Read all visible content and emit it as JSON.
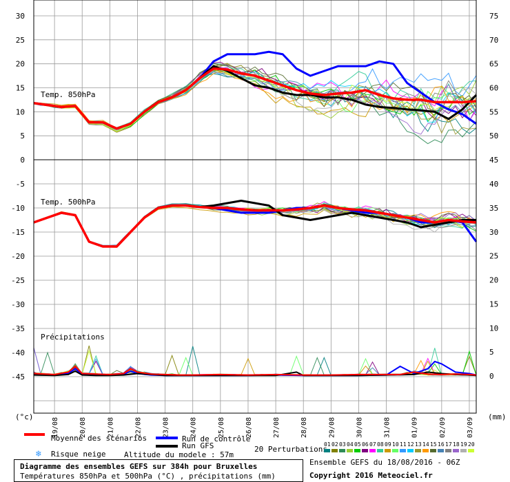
{
  "panels": {
    "t850_title": "Temp. 850hPa",
    "t500_title": "Temp. 500hPa",
    "precip_title": "Précipitations"
  },
  "units": {
    "left": "(°c)",
    "right": "(mm)"
  },
  "legend": {
    "mean": "Moyenne des scénarios",
    "control": "Run de contrôle",
    "gfs": "Run GFS",
    "snow": "Risque neige",
    "altitude": "Altitude du modele : 57m",
    "perturbations": "20 Perturbations",
    "perturbation_ids": [
      "01",
      "02",
      "03",
      "04",
      "05",
      "06",
      "07",
      "08",
      "09",
      "10",
      "11",
      "12",
      "13",
      "14",
      "15",
      "16",
      "17",
      "18",
      "19",
      "20"
    ]
  },
  "footer": {
    "title": "Diagramme des ensembles GEFS sur 384h pour Bruxelles",
    "subtitle": "Températures 850hPa et 500hPa (°C) , précipitations (mm)",
    "run": "Ensemble GEFS du 18/08/2016 - 06Z",
    "copyright": "Copyright 2016 Meteociel.fr"
  },
  "colors": {
    "mean": "#ff0000",
    "control": "#0000ff",
    "gfs": "#000000",
    "snow": "#3399ff",
    "perturbations": [
      "#008080",
      "#808000",
      "#2e8b57",
      "#9acd32",
      "#00cc00",
      "#800080",
      "#ff00ff",
      "#33cc99",
      "#cc9900",
      "#66ff66",
      "#3399ff",
      "#00ccff",
      "#999933",
      "#ff9900",
      "#556b2f",
      "#4682b4",
      "#808080",
      "#9966cc",
      "#b0b0b0",
      "#ccff33"
    ]
  },
  "chart_data": [
    {
      "type": "line",
      "title": "Temp. 850hPa",
      "x_labels": [
        "19/08",
        "20/08",
        "21/08",
        "22/08",
        "23/08",
        "24/08",
        "25/08",
        "26/08",
        "27/08",
        "28/08",
        "29/08",
        "30/08",
        "31/08",
        "01/09",
        "02/09",
        "03/09"
      ],
      "x_range_days": [
        18.25,
        34.25
      ],
      "ylim": [
        0,
        30
      ],
      "yticks": [
        0,
        5,
        10,
        15,
        20,
        25,
        30
      ],
      "series": [
        {
          "name": "Moyenne des scénarios",
          "x": [
            18.25,
            19.25,
            19.75,
            20.25,
            20.75,
            21.25,
            21.75,
            22.25,
            22.75,
            23.25,
            23.75,
            24.25,
            24.75,
            25.25,
            25.75,
            26.25,
            26.75,
            27.25,
            27.75,
            28.25,
            28.75,
            29.25,
            29.75,
            30.25,
            30.75,
            31.25,
            31.75,
            32.25,
            32.75,
            33.25,
            33.75,
            34.25
          ],
          "y": [
            11.8,
            11.0,
            11.2,
            7.8,
            7.8,
            6.5,
            7.5,
            10.0,
            12.0,
            13.0,
            14.5,
            17.0,
            19.0,
            18.8,
            18.0,
            17.5,
            16.5,
            15.5,
            14.5,
            13.8,
            13.5,
            13.8,
            14.0,
            14.5,
            13.5,
            12.8,
            12.5,
            12.5,
            12.0,
            12.0,
            12.0,
            12.2
          ]
        },
        {
          "name": "Run de contrôle",
          "x": [
            18.25,
            19.25,
            19.75,
            20.25,
            20.75,
            21.25,
            21.75,
            22.25,
            22.75,
            23.25,
            23.75,
            24.25,
            24.75,
            25.25,
            25.75,
            26.25,
            26.75,
            27.25,
            27.75,
            28.25,
            28.75,
            29.25,
            29.75,
            30.25,
            30.75,
            31.25,
            31.75,
            32.25,
            32.75,
            33.25,
            33.75,
            34.25
          ],
          "y": [
            11.8,
            11.0,
            11.2,
            7.8,
            7.8,
            6.5,
            7.5,
            10.0,
            12.0,
            13.0,
            14.5,
            17.0,
            20.5,
            22.0,
            22.0,
            22.0,
            22.5,
            22.0,
            19.0,
            17.5,
            18.5,
            19.5,
            19.5,
            19.5,
            20.5,
            20.0,
            16.0,
            14.0,
            12.0,
            10.5,
            9.5,
            7.5
          ]
        },
        {
          "name": "Run GFS",
          "x": [
            18.25,
            19.25,
            19.75,
            20.25,
            20.75,
            21.25,
            21.75,
            22.25,
            22.75,
            23.25,
            23.75,
            24.25,
            24.75,
            25.25,
            25.75,
            26.25,
            26.75,
            27.25,
            27.75,
            28.25,
            28.75,
            29.25,
            29.75,
            30.25,
            30.75,
            31.25,
            31.75,
            32.25,
            32.75,
            33.25,
            33.75,
            34.25
          ],
          "y": [
            11.8,
            11.0,
            11.2,
            7.8,
            7.8,
            6.5,
            7.5,
            10.0,
            12.0,
            13.0,
            14.5,
            17.0,
            19.5,
            18.5,
            17.0,
            15.5,
            15.0,
            14.0,
            13.5,
            13.5,
            13.0,
            13.0,
            12.5,
            11.5,
            11.0,
            10.8,
            10.5,
            10.3,
            10.0,
            8.5,
            10.5,
            13.5
          ]
        }
      ]
    },
    {
      "type": "line",
      "title": "Temp. 500hPa",
      "ylim": [
        -20,
        -5
      ],
      "yticks": [
        -20,
        -15,
        -10,
        -5
      ],
      "series": [
        {
          "name": "Moyenne des scénarios",
          "x": [
            18.25,
            19.25,
            19.75,
            20.25,
            20.75,
            21.25,
            21.75,
            22.25,
            22.75,
            23.25,
            23.75,
            24.25,
            24.75,
            25.25,
            25.75,
            26.25,
            26.75,
            27.25,
            27.75,
            28.25,
            28.75,
            29.25,
            29.75,
            30.25,
            30.75,
            31.25,
            31.75,
            32.25,
            32.75,
            33.25,
            33.75,
            34.25
          ],
          "y": [
            -13.0,
            -11.0,
            -11.5,
            -17.0,
            -18.0,
            -18.0,
            -15.0,
            -12.0,
            -10.0,
            -9.5,
            -9.5,
            -9.8,
            -10.0,
            -10.0,
            -10.3,
            -10.5,
            -10.5,
            -10.5,
            -10.3,
            -10.0,
            -9.5,
            -10.0,
            -10.3,
            -10.5,
            -11.0,
            -11.5,
            -12.0,
            -12.5,
            -13.0,
            -12.5,
            -12.8,
            -13.0
          ]
        },
        {
          "name": "Run de contrôle",
          "x": [
            18.25,
            19.25,
            19.75,
            20.25,
            20.75,
            21.25,
            21.75,
            22.25,
            22.75,
            23.25,
            23.75,
            24.25,
            24.75,
            25.25,
            25.75,
            26.25,
            26.75,
            27.25,
            27.75,
            28.25,
            28.75,
            29.25,
            29.75,
            30.25,
            30.75,
            31.25,
            31.75,
            32.25,
            32.75,
            33.25,
            33.75,
            34.25
          ],
          "y": [
            -13.0,
            -11.0,
            -11.5,
            -17.0,
            -18.0,
            -18.0,
            -15.0,
            -12.0,
            -10.0,
            -9.5,
            -9.5,
            -9.8,
            -10.0,
            -10.5,
            -11.0,
            -11.0,
            -11.0,
            -10.5,
            -10.0,
            -10.0,
            -9.5,
            -10.0,
            -10.5,
            -11.0,
            -11.0,
            -11.5,
            -12.0,
            -13.0,
            -13.0,
            -12.5,
            -13.0,
            -17.0
          ]
        },
        {
          "name": "Run GFS",
          "x": [
            18.25,
            19.25,
            19.75,
            20.25,
            20.75,
            21.25,
            21.75,
            22.25,
            22.75,
            23.25,
            23.75,
            24.25,
            24.75,
            25.25,
            25.75,
            26.25,
            26.75,
            27.25,
            27.75,
            28.25,
            28.75,
            29.25,
            29.75,
            30.25,
            30.75,
            31.25,
            31.75,
            32.25,
            32.75,
            33.25,
            33.75,
            34.25
          ],
          "y": [
            -13.0,
            -11.0,
            -11.5,
            -17.0,
            -18.0,
            -18.0,
            -15.0,
            -12.0,
            -10.0,
            -9.5,
            -9.5,
            -9.8,
            -9.5,
            -9.0,
            -8.5,
            -9.0,
            -9.5,
            -11.5,
            -12.0,
            -12.5,
            -12.0,
            -11.5,
            -11.0,
            -11.5,
            -12.0,
            -12.5,
            -13.0,
            -14.0,
            -13.5,
            -13.0,
            -12.5,
            -12.5
          ]
        }
      ]
    },
    {
      "type": "line",
      "title": "Précipitations",
      "ylim": [
        0,
        10
      ],
      "yticks_right": [
        0,
        5,
        10
      ],
      "series": [
        {
          "name": "Moyenne des scénarios",
          "x": [
            18.25,
            19.0,
            19.5,
            19.75,
            20.0,
            20.5,
            21.0,
            21.5,
            21.75,
            22.0,
            22.5,
            23.0,
            23.5,
            24.0,
            25.0,
            26.0,
            27.0,
            28.0,
            29.0,
            30.0,
            31.0,
            31.5,
            32.0,
            32.5,
            33.0,
            33.5,
            34.0,
            34.25
          ],
          "y": [
            0.5,
            0.3,
            0.8,
            2.0,
            0.5,
            0.4,
            0.3,
            0.5,
            1.5,
            0.8,
            0.4,
            0.3,
            0.2,
            0.2,
            0.3,
            0.2,
            0.3,
            0.2,
            0.2,
            0.3,
            0.3,
            0.3,
            0.8,
            0.4,
            0.3,
            0.4,
            0.3,
            0.2
          ]
        },
        {
          "name": "Run de contrôle",
          "x": [
            18.25,
            19.0,
            19.5,
            19.75,
            20.0,
            20.5,
            21.0,
            21.5,
            21.75,
            22.0,
            22.5,
            23.0,
            24.0,
            25.0,
            26.0,
            27.0,
            28.0,
            29.0,
            30.0,
            31.0,
            31.5,
            32.0,
            32.5,
            32.75,
            33.0,
            33.5,
            34.0,
            34.25
          ],
          "y": [
            0.3,
            0.2,
            0.5,
            1.5,
            0.3,
            0.2,
            0.2,
            0.3,
            1.0,
            0.5,
            0.2,
            0.1,
            0.1,
            0.1,
            0.1,
            0.2,
            0.1,
            0.1,
            0.1,
            0.2,
            2.0,
            0.5,
            1.5,
            3.0,
            2.5,
            0.8,
            0.5,
            0.2
          ]
        },
        {
          "name": "Run GFS",
          "x": [
            18.25,
            19.0,
            19.5,
            19.75,
            20.0,
            20.5,
            21.0,
            21.5,
            22.0,
            23.0,
            24.0,
            25.0,
            26.0,
            27.0,
            27.75,
            28.0,
            29.0,
            30.0,
            31.0,
            32.0,
            32.5,
            33.0,
            33.5,
            34.0,
            34.25
          ],
          "y": [
            0.2,
            0.1,
            0.3,
            1.0,
            0.2,
            0.1,
            0.1,
            0.2,
            0.5,
            0.1,
            0.1,
            0.1,
            0.1,
            0.1,
            0.8,
            0.1,
            0.1,
            0.1,
            0.2,
            0.3,
            0.8,
            0.5,
            0.3,
            0.2,
            0.1
          ]
        }
      ]
    }
  ]
}
